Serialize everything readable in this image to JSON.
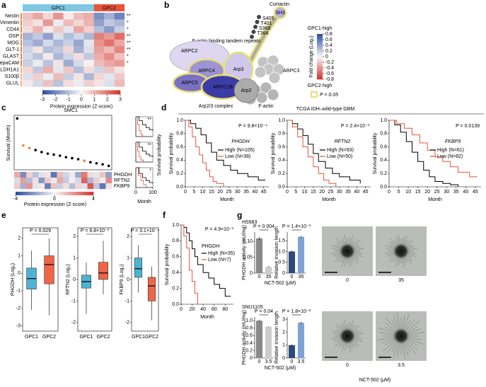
{
  "a": {
    "label": "a",
    "groups": [
      "GPC1",
      "GPC2"
    ],
    "group_colors": [
      "#7ec8e3",
      "#e8533a"
    ],
    "rows": [
      {
        "name": "Nestin",
        "stars": "**",
        "values": [
          0.8,
          1.2,
          0.5,
          1.5,
          0.2,
          0.9,
          1.1,
          -1.8,
          -1.2,
          -2.0
        ]
      },
      {
        "name": "Vimentin",
        "stars": "*",
        "values": [
          0.6,
          0.3,
          1.4,
          -0.2,
          0.9,
          0.5,
          1.0,
          -1.5,
          -0.8,
          -1.1
        ]
      },
      {
        "name": "CD44",
        "stars": "*",
        "values": [
          0.4,
          1.0,
          0.2,
          0.7,
          -0.3,
          1.2,
          0.6,
          -1.0,
          -1.6,
          -0.7
        ]
      },
      {
        "name": "OSP",
        "stars": "**",
        "values": [
          -1.2,
          -0.8,
          -1.5,
          -0.4,
          -1.0,
          -0.6,
          -1.1,
          1.8,
          1.4,
          2.1
        ]
      },
      {
        "name": "MOG",
        "stars": "**",
        "values": [
          -0.9,
          -1.3,
          -0.5,
          -1.1,
          -0.7,
          -1.4,
          -0.3,
          1.5,
          2.0,
          1.2
        ]
      },
      {
        "name": "GLT-1",
        "stars": "**",
        "values": [
          -0.6,
          0.3,
          -1.0,
          -0.8,
          0.5,
          -1.2,
          -0.4,
          1.3,
          0.9,
          1.7
        ]
      },
      {
        "name": "GLAST",
        "stars": "*",
        "values": [
          -0.5,
          -0.9,
          0.2,
          -1.1,
          -0.6,
          0.4,
          -0.8,
          1.1,
          1.6,
          0.8
        ]
      },
      {
        "name": "HepaCAM",
        "stars": "*",
        "values": [
          -0.7,
          -0.2,
          -0.9,
          0.3,
          -1.3,
          -0.5,
          0.1,
          0.9,
          1.2,
          1.4
        ]
      },
      {
        "name": "ALDH1A1",
        "values": [
          0.5,
          -0.8,
          1.1,
          -0.3,
          0.7,
          -1.0,
          0.4,
          -0.6,
          0.8,
          0.3
        ]
      },
      {
        "name": "S100β",
        "values": [
          -0.4,
          0.6,
          -0.2,
          0.9,
          -0.7,
          0.3,
          -1.1,
          0.5,
          -0.3,
          0.7
        ]
      },
      {
        "name": "GLUL",
        "values": [
          0.2,
          -0.5,
          0.8,
          -0.9,
          0.4,
          -0.2,
          0.6,
          0.3,
          -0.4,
          0.9
        ]
      }
    ],
    "scale": {
      "range": [
        -3,
        3
      ],
      "ticks": [
        -3,
        -2,
        -1,
        0,
        1,
        2,
        3
      ],
      "label": "Protein expression (Z-score)"
    }
  },
  "b": {
    "label": "b",
    "nodes": [
      "ARPC2",
      "ARPC4",
      "Arp3",
      "ARPC5",
      "ARPC1B",
      "Arp2",
      "ARPC3",
      "F-actin"
    ],
    "complex": "Arp2/3 complex",
    "cortactin": "Cortactin",
    "sh3": "SH3",
    "repeats": "F-actin binding tandem repeats",
    "sites": [
      "S405",
      "T401",
      "S368",
      "T364"
    ],
    "legend": {
      "high": "GPC1-high",
      "low": "GPC2-high",
      "title": "Fold change (Log₂)",
      "range": [
        -0.8,
        0.8
      ],
      "ticks": [
        0.8,
        0.6,
        0.4,
        0.2,
        0,
        -0.2,
        -0.4,
        -0.6,
        -0.8
      ],
      "sig": "P < 0.05"
    }
  },
  "c": {
    "label": "c",
    "title": "SMC1",
    "ylabel": "Survival (Month)",
    "scatter": {
      "ylim": [
        0,
        100
      ],
      "values": [
        98,
        45,
        40,
        36,
        32,
        29,
        27,
        25,
        22,
        20,
        18,
        15,
        12,
        10,
        8,
        5
      ],
      "colors": [
        "#000",
        "#e8853a",
        "#e8853a",
        "#000",
        "#000",
        "#000",
        "#000",
        "#000",
        "#000",
        "#000",
        "#000",
        "#e8853a",
        "#000",
        "#000",
        "#000",
        "#000"
      ]
    },
    "heatmap": [
      {
        "name": "PHGDH",
        "values": [
          1.5,
          -2.5,
          0.8,
          -1.2,
          -0.5,
          0.4,
          -3.0,
          1.2,
          -0.8,
          0.3,
          -1.8,
          2.5,
          0.6,
          -0.4,
          1.0,
          -2.0
        ]
      },
      {
        "name": "RFTN2",
        "values": [
          -0.6,
          1.8,
          -1.4,
          0.5,
          -2.2,
          0.9,
          -0.3,
          1.6,
          -1.0,
          0.2,
          -0.7,
          3.0,
          -1.5,
          0.8,
          -0.2,
          2.2
        ]
      },
      {
        "name": "FKBP9",
        "values": [
          0.9,
          -1.6,
          2.0,
          -0.4,
          0.3,
          -2.8,
          1.1,
          -0.9,
          0.5,
          -1.3,
          0.7,
          -0.5,
          3.2,
          -1.1,
          -3.0,
          0.4
        ]
      }
    ],
    "scale": {
      "range": [
        -4,
        4
      ],
      "ticks": [
        -4,
        0,
        4
      ],
      "label": "Protein expression (Z-score)"
    },
    "km": {
      "ylabel": "Survival probability",
      "xlabel": "Month",
      "xlim": [
        0,
        100
      ],
      "ylim": [
        0,
        1
      ],
      "xticks": [
        0,
        100
      ],
      "plots": [
        {
          "stars": "**",
          "series": [
            {
              "color": "#000",
              "x": [
                0,
                20,
                40,
                60,
                80,
                100
              ],
              "y": [
                1,
                0.8,
                0.6,
                0.45,
                0.35,
                0.3
              ]
            },
            {
              "color": "#e8533a",
              "x": [
                0,
                10,
                20,
                30,
                40
              ],
              "y": [
                1,
                0.6,
                0.3,
                0.1,
                0
              ]
            }
          ]
        },
        {
          "stars": "**",
          "series": [
            {
              "color": "#000",
              "x": [
                0,
                20,
                40,
                60,
                80,
                100
              ],
              "y": [
                1,
                0.75,
                0.55,
                0.4,
                0.3,
                0.25
              ]
            },
            {
              "color": "#e8533a",
              "x": [
                0,
                10,
                20,
                30,
                45
              ],
              "y": [
                1,
                0.55,
                0.25,
                0.1,
                0
              ]
            }
          ]
        },
        {
          "stars": "*",
          "series": [
            {
              "color": "#000",
              "x": [
                0,
                20,
                40,
                60,
                80,
                100
              ],
              "y": [
                1,
                0.7,
                0.5,
                0.35,
                0.25,
                0.2
              ]
            },
            {
              "color": "#e8533a",
              "x": [
                0,
                15,
                30,
                45,
                60
              ],
              "y": [
                1,
                0.6,
                0.35,
                0.15,
                0
              ]
            }
          ]
        }
      ]
    }
  },
  "d": {
    "label": "d",
    "title": "TCGA IDH–wild-type GBM",
    "ylabel": "Survival probability",
    "xlabel": "Month",
    "xlim": [
      0,
      48
    ],
    "ylim": [
      0,
      1
    ],
    "xticks": [
      0,
      5,
      10,
      15,
      20,
      25,
      30,
      35,
      40,
      45
    ],
    "yticks": [
      {
        "value": 0,
        "label": "0.0"
      },
      0.2,
      0.4,
      0.6,
      0.8,
      {
        "value": 1,
        "label": "1.0"
      }
    ],
    "plots": [
      {
        "p": "P = 9.8×10⁻⁴",
        "gene": "PHGDH",
        "series": [
          {
            "name": "High (N=105)",
            "color": "#000",
            "x": [
              0,
              3,
              6,
              9,
              12,
              15,
              18,
              22,
              26,
              30,
              36,
              42,
              46
            ],
            "y": [
              1,
              0.95,
              0.88,
              0.78,
              0.66,
              0.52,
              0.4,
              0.32,
              0.25,
              0.2,
              0.15,
              0.1,
              0.1
            ]
          },
          {
            "name": "Low (N=38)",
            "color": "#e8533a",
            "x": [
              0,
              2,
              4,
              6,
              8,
              10,
              12,
              14,
              16,
              18,
              22
            ],
            "y": [
              1,
              0.9,
              0.75,
              0.6,
              0.48,
              0.36,
              0.25,
              0.15,
              0.08,
              0.05,
              0
            ]
          }
        ]
      },
      {
        "p": "P = 2.4×10⁻³",
        "gene": "RFTN2",
        "series": [
          {
            "name": "High (N=93)",
            "color": "#000",
            "x": [
              0,
              3,
              6,
              9,
              12,
              15,
              18,
              22,
              26,
              30,
              36,
              42
            ],
            "y": [
              1,
              0.95,
              0.87,
              0.77,
              0.64,
              0.5,
              0.38,
              0.28,
              0.2,
              0.15,
              0.1,
              0.05
            ]
          },
          {
            "name": "Low (N=50)",
            "color": "#e8533a",
            "x": [
              0,
              3,
              6,
              9,
              12,
              15,
              18,
              21,
              24,
              28
            ],
            "y": [
              1,
              0.9,
              0.75,
              0.6,
              0.45,
              0.3,
              0.2,
              0.1,
              0.05,
              0
            ]
          }
        ]
      },
      {
        "p": "P = 0.0139",
        "gene": "FKBP9",
        "series": [
          {
            "name": "High (N=61)",
            "color": "#000",
            "x": [
              0,
              3,
              6,
              9,
              12,
              15,
              18,
              21,
              24,
              28,
              32,
              36
            ],
            "y": [
              1,
              0.93,
              0.82,
              0.68,
              0.52,
              0.38,
              0.25,
              0.15,
              0.08,
              0.05,
              0.03,
              0
            ]
          },
          {
            "name": "Low (N=82)",
            "color": "#e8533a",
            "x": [
              0,
              4,
              8,
              12,
              16,
              20,
              24,
              28,
              32,
              36,
              42,
              46
            ],
            "y": [
              1,
              0.95,
              0.88,
              0.78,
              0.66,
              0.55,
              0.45,
              0.38,
              0.3,
              0.22,
              0.15,
              0.15
            ]
          }
        ]
      }
    ]
  },
  "e": {
    "label": "e",
    "plots": [
      {
        "ylabel": "PHGDH (Log₂)",
        "p": "P = 0.029",
        "ylim": [
          -3.3,
          2.6
        ],
        "yticks": [
          -3,
          -2,
          -1,
          0,
          1,
          2
        ],
        "categories": [
          "GPC1",
          "GPC2"
        ],
        "colors": [
          "#4eb3d3",
          "#ef6548"
        ],
        "boxes": [
          {
            "min": -2.1,
            "q1": -0.9,
            "median": -0.3,
            "q3": 0.3,
            "max": 1.3
          },
          {
            "min": -2.4,
            "q1": -0.6,
            "median": 0.5,
            "q3": 1.0,
            "max": 2.0
          }
        ]
      },
      {
        "ylabel": "RFTN2 (Log₂)",
        "p": "P = 6.8×10⁻³",
        "ylim": [
          -2.4,
          2.4
        ],
        "yticks": [
          -2,
          -1,
          0,
          1,
          2
        ],
        "categories": [
          "GPC1",
          "GPC2"
        ],
        "colors": [
          "#4eb3d3",
          "#ef6548"
        ],
        "boxes": [
          {
            "min": -1.6,
            "q1": -0.4,
            "median": -0.1,
            "q3": 0.2,
            "max": 0.8
          },
          {
            "min": -0.7,
            "q1": 0,
            "median": 0.3,
            "q3": 0.8,
            "max": 1.8
          }
        ]
      },
      {
        "ylabel": "FKBP9 (Log₂)",
        "p": "P = 3.1×10⁻⁴",
        "ylim": [
          -2.4,
          2.4
        ],
        "yticks": [
          -2,
          -1,
          0,
          1,
          2
        ],
        "categories": [
          "GPC1",
          "GPC2"
        ],
        "colors": [
          "#4eb3d3",
          "#ef6548"
        ],
        "boxes": [
          {
            "min": -0.6,
            "q1": 0.1,
            "median": 0.5,
            "q3": 1.0,
            "max": 1.6
          },
          {
            "min": -1.9,
            "q1": -1.0,
            "median": -0.3,
            "q3": 0.1,
            "max": 0.6
          }
        ]
      }
    ]
  },
  "f": {
    "label": "f",
    "p": "P = 4.9×10⁻³",
    "gene": "PHGDH",
    "ylabel": "Survival probability",
    "xlabel": "Month",
    "xlim": [
      0,
      95
    ],
    "ylim": [
      0,
      1
    ],
    "xticks": [
      0,
      20,
      40,
      60,
      80
    ],
    "yticks": [
      {
        "value": 0,
        "label": "0.0"
      },
      0.2,
      0.4,
      0.6,
      0.8,
      {
        "value": 1,
        "label": "1.0"
      }
    ],
    "series": [
      {
        "name": "High (N=35)",
        "color": "#000",
        "x": [
          0,
          5,
          10,
          15,
          20,
          25,
          30,
          40,
          50,
          60,
          70,
          80,
          90
        ],
        "y": [
          1,
          0.97,
          0.9,
          0.8,
          0.7,
          0.6,
          0.5,
          0.4,
          0.33,
          0.25,
          0.2,
          0.1,
          0.1
        ]
      },
      {
        "name": "Low (N=7)",
        "color": "#e8533a",
        "x": [
          0,
          5,
          10,
          15,
          20,
          25,
          30
        ],
        "y": [
          1,
          0.86,
          0.71,
          0.43,
          0.29,
          0.14,
          0
        ]
      }
    ]
  },
  "g": {
    "label": "g",
    "photo_xlabel": "NCT-502 (μM)",
    "cells": [
      {
        "name": "HS683",
        "xlabel": "NCT-502 (μM)",
        "photos": [
          "0",
          "35"
        ],
        "charts": [
          {
            "ylabel": "PHGDH activity (mU/mg)",
            "p": "P = 0.004",
            "categories": [
              "0",
              "35"
            ],
            "values": [
              0.11,
              0.02
            ],
            "errors": [
              0.005,
              0.002
            ],
            "colors": [
              "#888888",
              "#cccccc"
            ],
            "ylim": [
              0,
              0.13
            ],
            "yticks": [
              0,
              0.05,
              {
                "value": 0.1,
                "label": "0.10"
              }
            ]
          },
          {
            "ylabel": "Relative invasion length",
            "p": "P = 1.4×10⁻³",
            "categories": [
              "0",
              "35"
            ],
            "values": [
              1.0,
              1.68
            ],
            "errors": [
              0.05,
              0.05
            ],
            "colors": [
              "#2e4a7a",
              "#7fa3d1"
            ],
            "ylim": [
              0,
              1.9
            ],
            "yticks": [
              0,
              0.5,
              {
                "value": 1,
                "label": "1.0"
              },
              1.5
            ]
          }
        ]
      },
      {
        "name": "SNU1105",
        "xlabel": "NCT-502 (μM)",
        "photos": [
          "0",
          "3.5"
        ],
        "charts": [
          {
            "ylabel": "PHGDH activity (mU/mg)",
            "p": "P = 0.04",
            "categories": [
              "0",
              "3.5"
            ],
            "values": [
              1.0,
              0.84
            ],
            "errors": [
              0.02,
              0.01
            ],
            "colors": [
              "#888888",
              "#cccccc"
            ],
            "ylim": [
              0,
              1.1
            ],
            "yticks": [
              0,
              0.2,
              0.4,
              0.6,
              0.8,
              {
                "value": 1,
                "label": "1.0"
              }
            ]
          },
          {
            "ylabel": "Relative invasion length",
            "p": "P = 1.8×10⁻²",
            "categories": [
              "0",
              "3.5"
            ],
            "values": [
              1.0,
              2.75
            ],
            "errors": [
              0.08,
              0.1
            ],
            "colors": [
              "#2e4a7a",
              "#7fa3d1"
            ],
            "ylim": [
              0,
              3.2
            ],
            "yticks": [
              0,
              1,
              2,
              3
            ]
          }
        ]
      }
    ]
  }
}
